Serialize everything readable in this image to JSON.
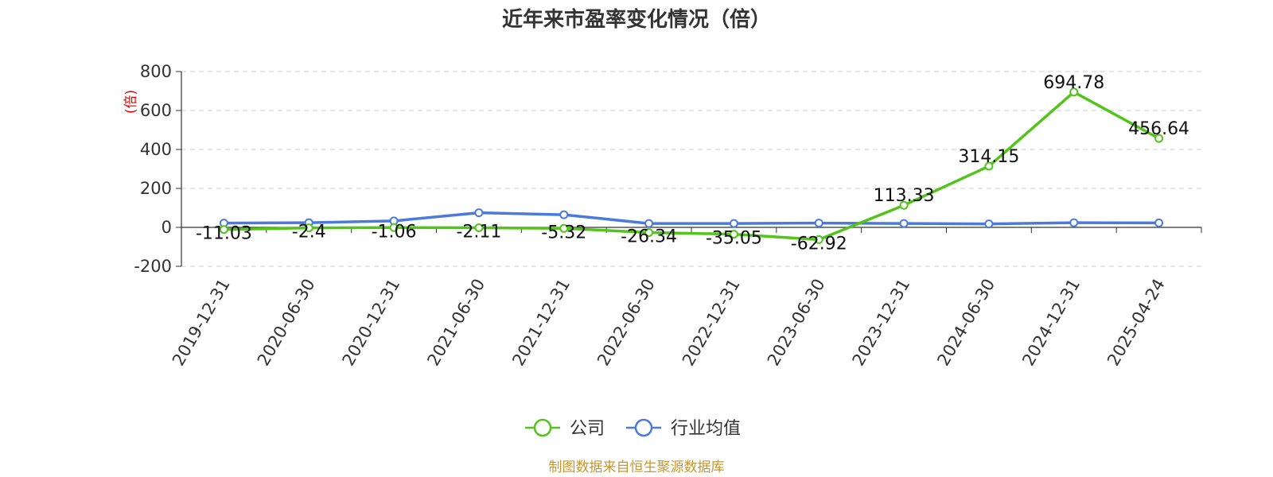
{
  "chart_data": {
    "type": "line",
    "title": "近年来市盈率变化情况（倍）",
    "ylabel": "(倍)",
    "ylim": [
      -200,
      800
    ],
    "yticks": [
      -200,
      0,
      200,
      400,
      600,
      800
    ],
    "grid": true,
    "legend_position": "bottom",
    "categories": [
      "2019-12-31",
      "2020-06-30",
      "2020-12-31",
      "2021-06-30",
      "2021-12-31",
      "2022-06-30",
      "2022-12-31",
      "2023-06-30",
      "2023-12-31",
      "2024-06-30",
      "2024-12-31",
      "2025-04-24"
    ],
    "series": [
      {
        "name": "公司",
        "color": "#52c41a",
        "values": [
          -11.03,
          -2.4,
          -1.06,
          -2.11,
          -5.32,
          -26.34,
          -35.05,
          -62.92,
          113.33,
          314.15,
          694.78,
          456.64
        ],
        "labels": [
          "-11.03",
          "-2.4",
          "-1.06",
          "-2.11",
          "-5.32",
          "-26.34",
          "-35.05",
          "-62.92",
          "113.33",
          "314.15",
          "694.78",
          "456.64"
        ]
      },
      {
        "name": "行业均值",
        "color": "#4a7bdc",
        "values": [
          22,
          24,
          33,
          75,
          65,
          20,
          20,
          22,
          20,
          18,
          24,
          23
        ]
      }
    ],
    "source": "制图数据来自恒生聚源数据库"
  }
}
